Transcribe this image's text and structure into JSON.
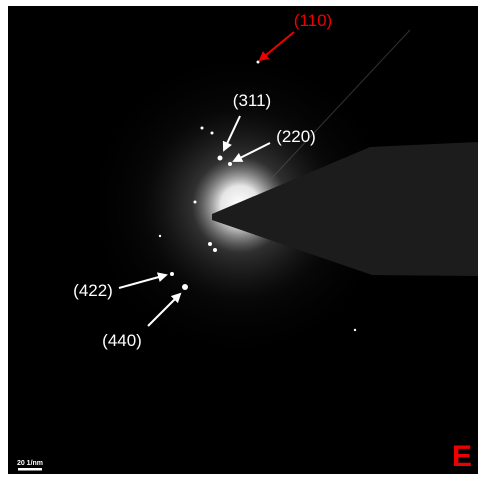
{
  "image": {
    "annotations": [
      {
        "label": "(110)"
      },
      {
        "label": "(311)"
      },
      {
        "label": "(220)"
      },
      {
        "label": "(422)"
      },
      {
        "label": "(440)"
      }
    ],
    "panel_label": "E",
    "scale_bar": "20 1/nm"
  }
}
